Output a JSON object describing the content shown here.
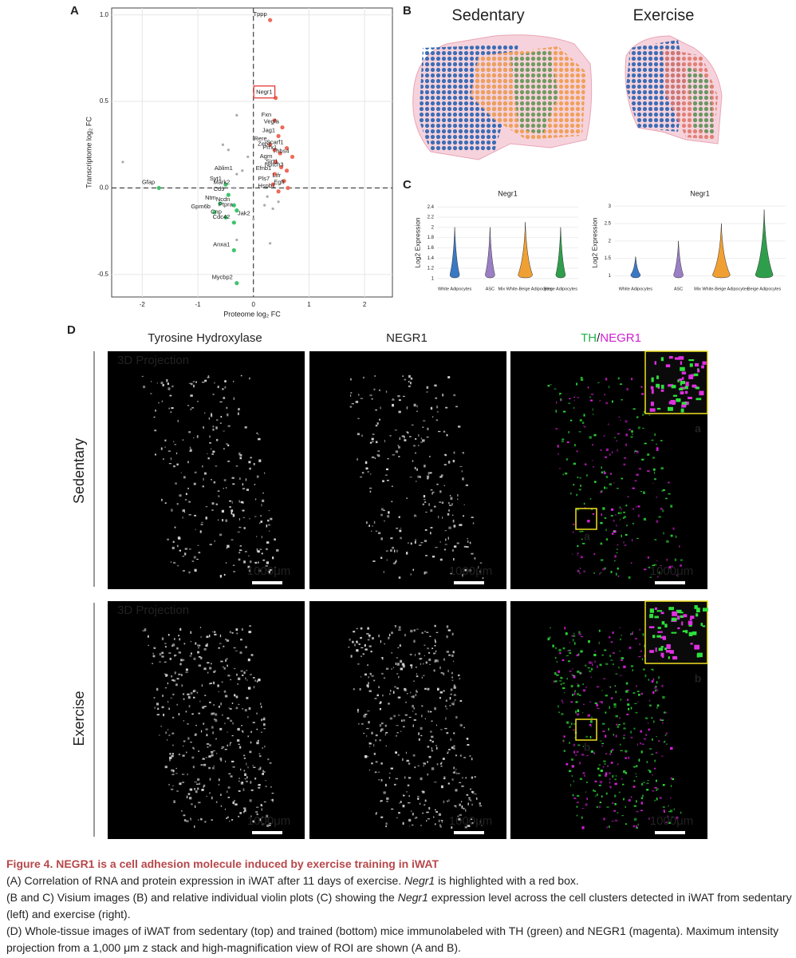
{
  "panel_labels": [
    "A",
    "B",
    "C",
    "D"
  ],
  "chart_data": [
    {
      "type": "scatter",
      "xlabel": "Proteome log₂ FC",
      "ylabel": "Transcriptome log₂ FC",
      "xlim": [
        -2.55,
        2.5
      ],
      "ylim": [
        -0.63,
        1.04
      ],
      "xticks": [
        -2,
        -1,
        0,
        1,
        2
      ],
      "yticks": [
        -0.5,
        {
          "value": 0,
          "label": "0.0"
        },
        0.5,
        {
          "value": 1,
          "label": "1.0"
        }
      ],
      "grid": true,
      "zero_lines": true,
      "highlight": "Negr1",
      "series": [
        {
          "color": "#ee6a5a",
          "labels": [
            "Tppp",
            "Negr1",
            "Fxn",
            "Vegfa",
            "Jag1",
            "Rere",
            "Scarf1",
            "Zeb1",
            "Prrx1",
            "Thbs4",
            "Agrn",
            "Sirt1",
            "Notch3",
            "Efnb1",
            "Lifr",
            "Pls7",
            "Egfr",
            "Hspb1"
          ],
          "x": [
            0.3,
            0.4,
            0.38,
            0.52,
            0.45,
            0.3,
            0.6,
            0.38,
            0.48,
            0.7,
            0.4,
            0.5,
            0.6,
            0.38,
            0.55,
            0.35,
            0.62,
            0.45
          ],
          "values": [
            0.97,
            0.52,
            0.39,
            0.35,
            0.3,
            0.25,
            0.23,
            0.22,
            0.2,
            0.18,
            0.15,
            0.12,
            0.1,
            0.08,
            0.04,
            0.02,
            0.0,
            -0.02
          ]
        },
        {
          "color": "#3fc46e",
          "labels": [
            "Gfap",
            "Syt1",
            "Cd9",
            "Ntm",
            "Ncdn",
            "Ptpra",
            "Gpm6b",
            "Cnp",
            "Cdc42",
            "Anxa1",
            "Mycbp2"
          ],
          "x": [
            -1.7,
            -0.5,
            -0.45,
            -0.6,
            -0.35,
            -0.3,
            -0.7,
            -0.5,
            -0.35,
            -0.35,
            -0.3
          ],
          "values": [
            0.0,
            0.02,
            -0.04,
            -0.09,
            -0.1,
            -0.13,
            -0.14,
            -0.17,
            -0.2,
            -0.36,
            -0.55
          ]
        },
        {
          "color": "#aaaaaa",
          "labels": [
            "Ablim1",
            "Mark2",
            "Jak2",
            null,
            null,
            null,
            null,
            null,
            null,
            null,
            null,
            null,
            null,
            null,
            null,
            null
          ],
          "x": [
            -0.3,
            -0.35,
            0.0,
            -2.35,
            -0.3,
            -0.55,
            -0.45,
            -0.6,
            -0.2,
            0.25,
            0.2,
            0.35,
            0.45,
            -0.1,
            0.3,
            -0.3
          ],
          "values": [
            0.08,
            0.0,
            -0.18,
            0.15,
            0.42,
            0.25,
            0.22,
            0.12,
            0.1,
            -0.05,
            -0.1,
            -0.12,
            -0.08,
            0.18,
            -0.32,
            -0.3
          ]
        }
      ]
    },
    {
      "type": "violin",
      "title": "Negr1",
      "ylabel": "Log2 Expression",
      "categories": [
        "White Adipocytes",
        "ASC",
        "Mix White-Beige Adipocytes",
        "Beige Adipocytes"
      ],
      "colors": [
        "#3b78c4",
        "#9a7fc4",
        "#f0a033",
        "#2f9e4c"
      ],
      "values": [
        2.0,
        2.0,
        2.1,
        2.0
      ],
      "ylim": [
        0.95,
        2.45
      ],
      "yticks": [
        1,
        1.2,
        1.4,
        1.6,
        1.8,
        2,
        2.2,
        2.4
      ]
    },
    {
      "type": "violin",
      "title": "Negr1",
      "ylabel": "Log2 Expression",
      "categories": [
        "White Adipocytes",
        "ASC",
        "Mix White-Beige Adipocytes",
        "Beige Adipocytes"
      ],
      "colors": [
        "#3b78c4",
        "#9a7fc4",
        "#f0a033",
        "#2f9e4c"
      ],
      "values": [
        1.55,
        2.0,
        2.5,
        2.9
      ],
      "ylim": [
        0.85,
        3.05
      ],
      "yticks": [
        1,
        1.5,
        2,
        2.5,
        3
      ]
    }
  ],
  "visium": {
    "titles": [
      "Sedentary",
      "Exercise"
    ]
  },
  "microscopy": {
    "columns": [
      "Tyrosine Hydroxylase",
      "NEGR1"
    ],
    "merge": [
      "TH",
      "/",
      "NEGR1"
    ],
    "rows": [
      "Sedentary",
      "Exercise"
    ],
    "projection": "3D Projection",
    "scale_bar": "1000μm",
    "roi": [
      "a",
      "b"
    ]
  },
  "caption": {
    "title": "Figure 4.  NEGR1 is a cell adhesion molecule induced by exercise training in iWAT",
    "paragraphs": [
      [
        "(A) Correlation of RNA and protein expression in iWAT after 11 days of exercise. ",
        {
          "text": "Negr1",
          "italic": true
        },
        " is highlighted with a red box."
      ],
      [
        "(B and C) Visium images (B) and relative individual violin plots (C) showing the ",
        {
          "text": "Negr1",
          "italic": true
        },
        " expression level across the cell clusters detected in iWAT from sedentary (left) and exercise (right)."
      ],
      [
        "(D) Whole-tissue images of iWAT from sedentary (top) and trained (bottom) mice immunolabeled with TH (green) and NEGR1 (magenta). Maximum intensity projection from a 1,000 μm z stack and high-magnification view of ROI are shown (A and B)."
      ]
    ]
  }
}
